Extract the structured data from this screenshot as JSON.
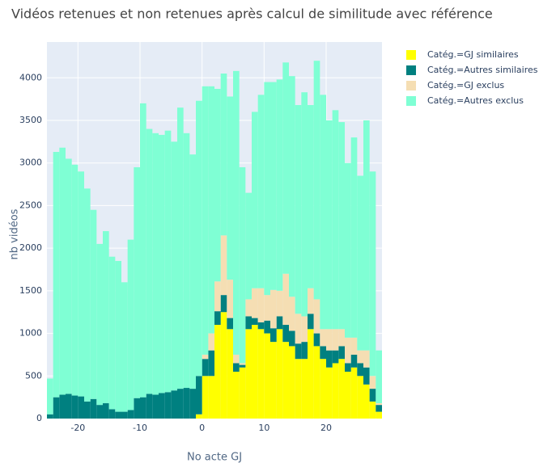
{
  "chart_data": {
    "type": "histogram",
    "stacked": true,
    "title": "Vidéos retenues et non retenues après calcul de similitude avec référence",
    "x_label": "No acte GJ",
    "y_label": "nb vidéos",
    "bins": [
      -25,
      -24,
      -23,
      -22,
      -21,
      -20,
      -19,
      -18,
      -17,
      -16,
      -15,
      -14,
      -13,
      -12,
      -11,
      -10,
      -9,
      -8,
      -7,
      -6,
      -5,
      -4,
      -3,
      -2,
      -1,
      0,
      1,
      2,
      3,
      4,
      5,
      6,
      7,
      8,
      9,
      10,
      11,
      12,
      13,
      14,
      15,
      16,
      17,
      18,
      19,
      20,
      21,
      22,
      23,
      24,
      25,
      26,
      27,
      28,
      29
    ],
    "series": [
      {
        "name": "Catég.=GJ similaires",
        "color": "#ffff00",
        "values": [
          0,
          0,
          0,
          0,
          0,
          0,
          0,
          0,
          0,
          0,
          0,
          0,
          0,
          0,
          0,
          0,
          0,
          0,
          0,
          0,
          0,
          0,
          0,
          0,
          50,
          500,
          500,
          1100,
          1250,
          1050,
          550,
          600,
          1050,
          1100,
          1050,
          1000,
          900,
          1050,
          900,
          850,
          700,
          700,
          1050,
          850,
          700,
          600,
          650,
          700,
          550,
          600,
          500,
          400,
          200,
          80
        ]
      },
      {
        "name": "Catég.=Autres similaires",
        "color": "#008080",
        "values": [
          50,
          250,
          280,
          290,
          270,
          260,
          200,
          230,
          160,
          180,
          110,
          80,
          80,
          100,
          240,
          250,
          290,
          280,
          300,
          310,
          330,
          350,
          360,
          350,
          450,
          200,
          300,
          160,
          200,
          130,
          100,
          30,
          150,
          80,
          80,
          150,
          160,
          150,
          200,
          180,
          180,
          200,
          180,
          150,
          150,
          200,
          150,
          150,
          100,
          150,
          150,
          200,
          150,
          80
        ]
      },
      {
        "name": "Catég.=GJ exclus",
        "color": "#f5deb3",
        "values": [
          0,
          0,
          0,
          0,
          0,
          0,
          0,
          0,
          0,
          0,
          0,
          0,
          0,
          0,
          0,
          0,
          0,
          0,
          0,
          0,
          0,
          0,
          0,
          0,
          0,
          50,
          200,
          350,
          700,
          450,
          100,
          20,
          200,
          350,
          400,
          300,
          450,
          300,
          600,
          400,
          350,
          300,
          300,
          400,
          200,
          250,
          250,
          200,
          300,
          200,
          150,
          200,
          150,
          20
        ]
      },
      {
        "name": "Catég.=Autres exclus",
        "color": "#7fffd4",
        "values": [
          420,
          2880,
          2900,
          2760,
          2710,
          2640,
          2500,
          2220,
          1890,
          2020,
          1790,
          1770,
          1520,
          2000,
          2710,
          3450,
          3110,
          3070,
          3030,
          3070,
          2920,
          3300,
          2990,
          2750,
          3230,
          3150,
          2900,
          2260,
          1900,
          2150,
          3330,
          2300,
          1250,
          2070,
          2270,
          2500,
          2440,
          2480,
          2480,
          2590,
          2450,
          2630,
          2150,
          2800,
          2750,
          2450,
          2570,
          2430,
          2050,
          2350,
          2050,
          2700,
          2400,
          620
        ]
      }
    ],
    "xlim": [
      -25,
      29
    ],
    "ylim": [
      0,
      4420
    ],
    "xticks": [
      -20,
      -10,
      0,
      10,
      20
    ],
    "yticks": [
      0,
      500,
      1000,
      1500,
      2000,
      2500,
      3000,
      3500,
      4000
    ],
    "grid": true,
    "legend": "top-right"
  }
}
